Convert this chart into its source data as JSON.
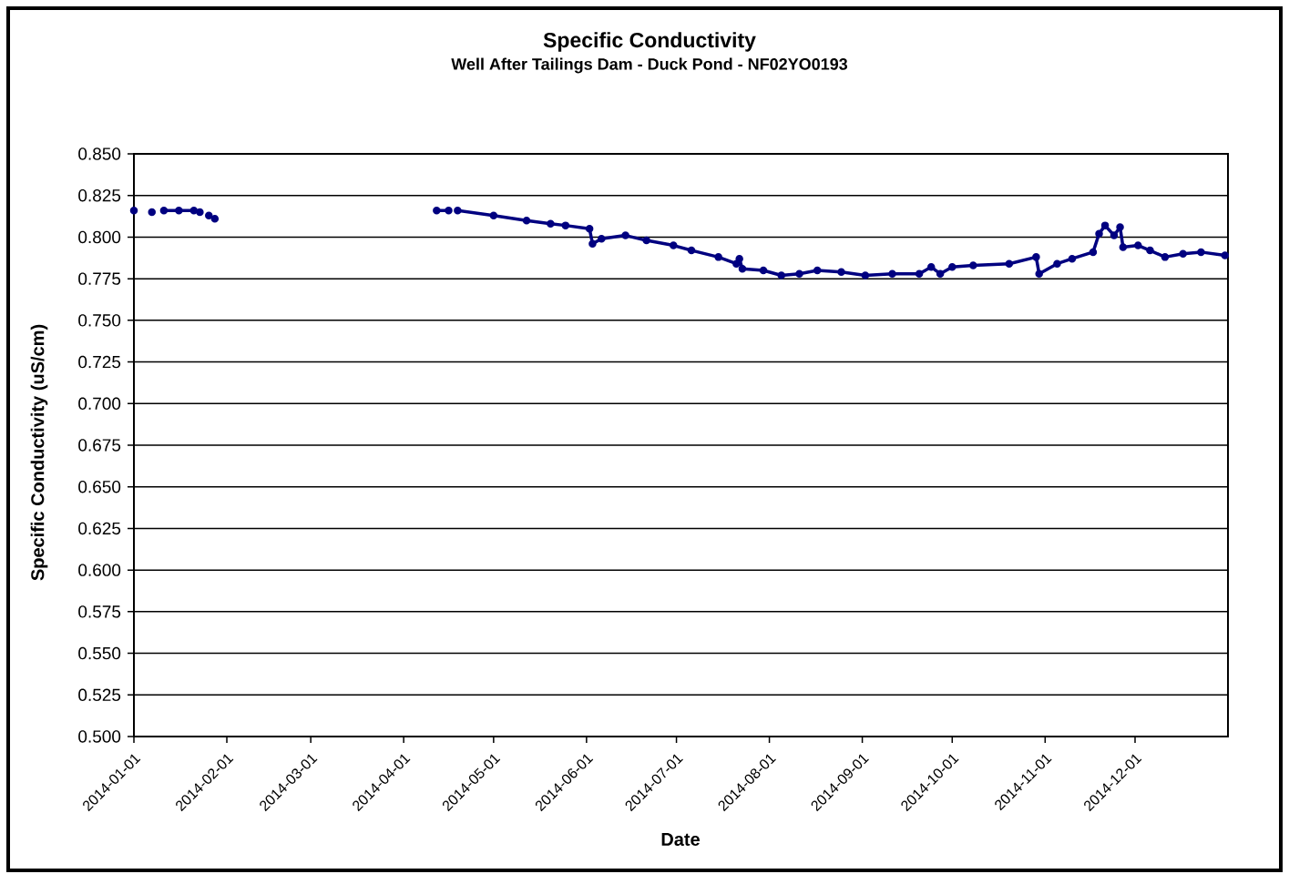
{
  "chart_data": {
    "type": "line",
    "title": "Specific Conductivity",
    "subtitle": "Well After Tailings Dam - Duck Pond - NF02YO0193",
    "xlabel": "Date",
    "ylabel": "Specific Conductivity  (uS/cm)",
    "x": [
      "2014-01-01",
      "2014-01-02",
      "2014-01-07",
      "2014-01-08",
      "2014-01-11",
      "2014-01-16",
      "2014-01-21",
      "2014-01-23",
      "2014-01-24",
      "2014-01-26",
      "2014-01-28",
      "2014-01-29",
      "2014-04-12",
      "2014-04-16",
      "2014-04-17",
      "2014-04-19",
      "2014-05-01",
      "2014-05-12",
      "2014-05-20",
      "2014-05-25",
      "2014-06-02",
      "2014-06-03",
      "2014-06-06",
      "2014-06-14",
      "2014-06-21",
      "2014-06-30",
      "2014-07-06",
      "2014-07-15",
      "2014-07-21",
      "2014-07-22",
      "2014-07-23",
      "2014-07-30",
      "2014-08-05",
      "2014-08-11",
      "2014-08-17",
      "2014-08-25",
      "2014-09-02",
      "2014-09-11",
      "2014-09-20",
      "2014-09-24",
      "2014-09-27",
      "2014-10-01",
      "2014-10-08",
      "2014-10-20",
      "2014-10-29",
      "2014-10-30",
      "2014-11-05",
      "2014-11-10",
      "2014-11-17",
      "2014-11-19",
      "2014-11-21",
      "2014-11-24",
      "2014-11-26",
      "2014-11-27",
      "2014-12-02",
      "2014-12-06",
      "2014-12-11",
      "2014-12-17",
      "2014-12-23",
      "2014-12-31"
    ],
    "series": [
      {
        "color": "#000080",
        "values": [
          0.816,
          null,
          0.815,
          null,
          0.816,
          0.816,
          0.816,
          0.815,
          null,
          0.813,
          0.811,
          null,
          0.816,
          0.816,
          null,
          0.816,
          0.813,
          0.81,
          0.808,
          0.807,
          0.805,
          0.796,
          0.799,
          0.801,
          0.798,
          0.795,
          0.792,
          0.788,
          0.784,
          0.787,
          0.781,
          0.78,
          0.777,
          0.778,
          0.78,
          0.779,
          0.777,
          0.778,
          0.778,
          0.782,
          0.778,
          0.782,
          0.783,
          0.784,
          0.788,
          0.778,
          0.784,
          0.787,
          0.791,
          0.802,
          0.807,
          0.801,
          0.806,
          0.794,
          0.795,
          0.792,
          0.788,
          0.79,
          0.791,
          0.789
        ]
      }
    ],
    "xlim": [
      "2014-01-01",
      "2015-01-01"
    ],
    "xticks": [
      "2014-01-01",
      "2014-02-01",
      "2014-03-01",
      "2014-04-01",
      "2014-05-01",
      "2014-06-01",
      "2014-07-01",
      "2014-08-01",
      "2014-09-01",
      "2014-10-01",
      "2014-11-01",
      "2014-12-01"
    ],
    "ylim": [
      0.5,
      0.85
    ],
    "yticks": [
      {
        "value": 0.5,
        "label": "0.500"
      },
      {
        "value": 0.525,
        "label": "0.525"
      },
      {
        "value": 0.55,
        "label": "0.550"
      },
      {
        "value": 0.575,
        "label": "0.575"
      },
      {
        "value": 0.6,
        "label": "0.600"
      },
      {
        "value": 0.625,
        "label": "0.625"
      },
      {
        "value": 0.65,
        "label": "0.650"
      },
      {
        "value": 0.675,
        "label": "0.675"
      },
      {
        "value": 0.7,
        "label": "0.700"
      },
      {
        "value": 0.725,
        "label": "0.725"
      },
      {
        "value": 0.75,
        "label": "0.750"
      },
      {
        "value": 0.775,
        "label": "0.775"
      },
      {
        "value": 0.8,
        "label": "0.800"
      },
      {
        "value": 0.825,
        "label": "0.825"
      },
      {
        "value": 0.85,
        "label": "0.850"
      }
    ],
    "grid": "y",
    "marker": "circle",
    "line_style": "solid"
  }
}
